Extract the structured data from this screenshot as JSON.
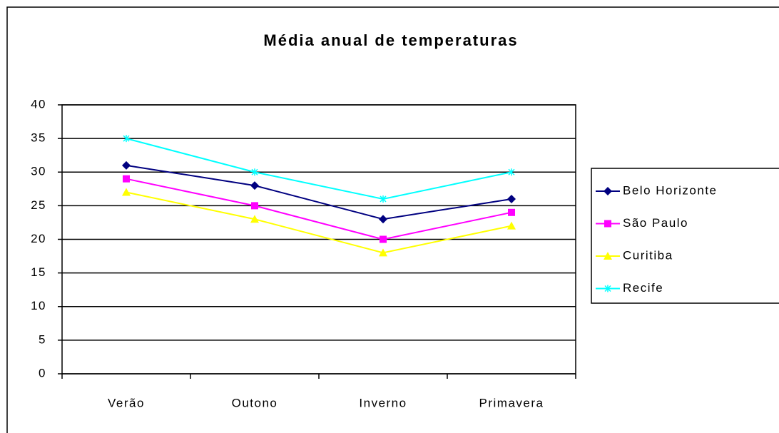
{
  "chart_data": {
    "type": "line",
    "title": "Média anual de temperaturas",
    "categories": [
      "Verão",
      "Outono",
      "Inverno",
      "Primavera"
    ],
    "series": [
      {
        "name": "Belo Horizonte",
        "color": "#000080",
        "marker": "diamond",
        "values": [
          31,
          28,
          23,
          26
        ]
      },
      {
        "name": "São Paulo",
        "color": "#ff00ff",
        "marker": "square",
        "values": [
          29,
          25,
          20,
          24
        ]
      },
      {
        "name": "Curitiba",
        "color": "#ffff00",
        "marker": "triangle",
        "values": [
          27,
          23,
          18,
          22
        ]
      },
      {
        "name": "Recife",
        "color": "#00ffff",
        "marker": "star",
        "values": [
          35,
          30,
          26,
          30
        ]
      }
    ],
    "ylim": [
      0,
      40
    ],
    "yticks": [
      0,
      5,
      10,
      15,
      20,
      25,
      30,
      35,
      40
    ],
    "grid": true,
    "legend": "right"
  }
}
